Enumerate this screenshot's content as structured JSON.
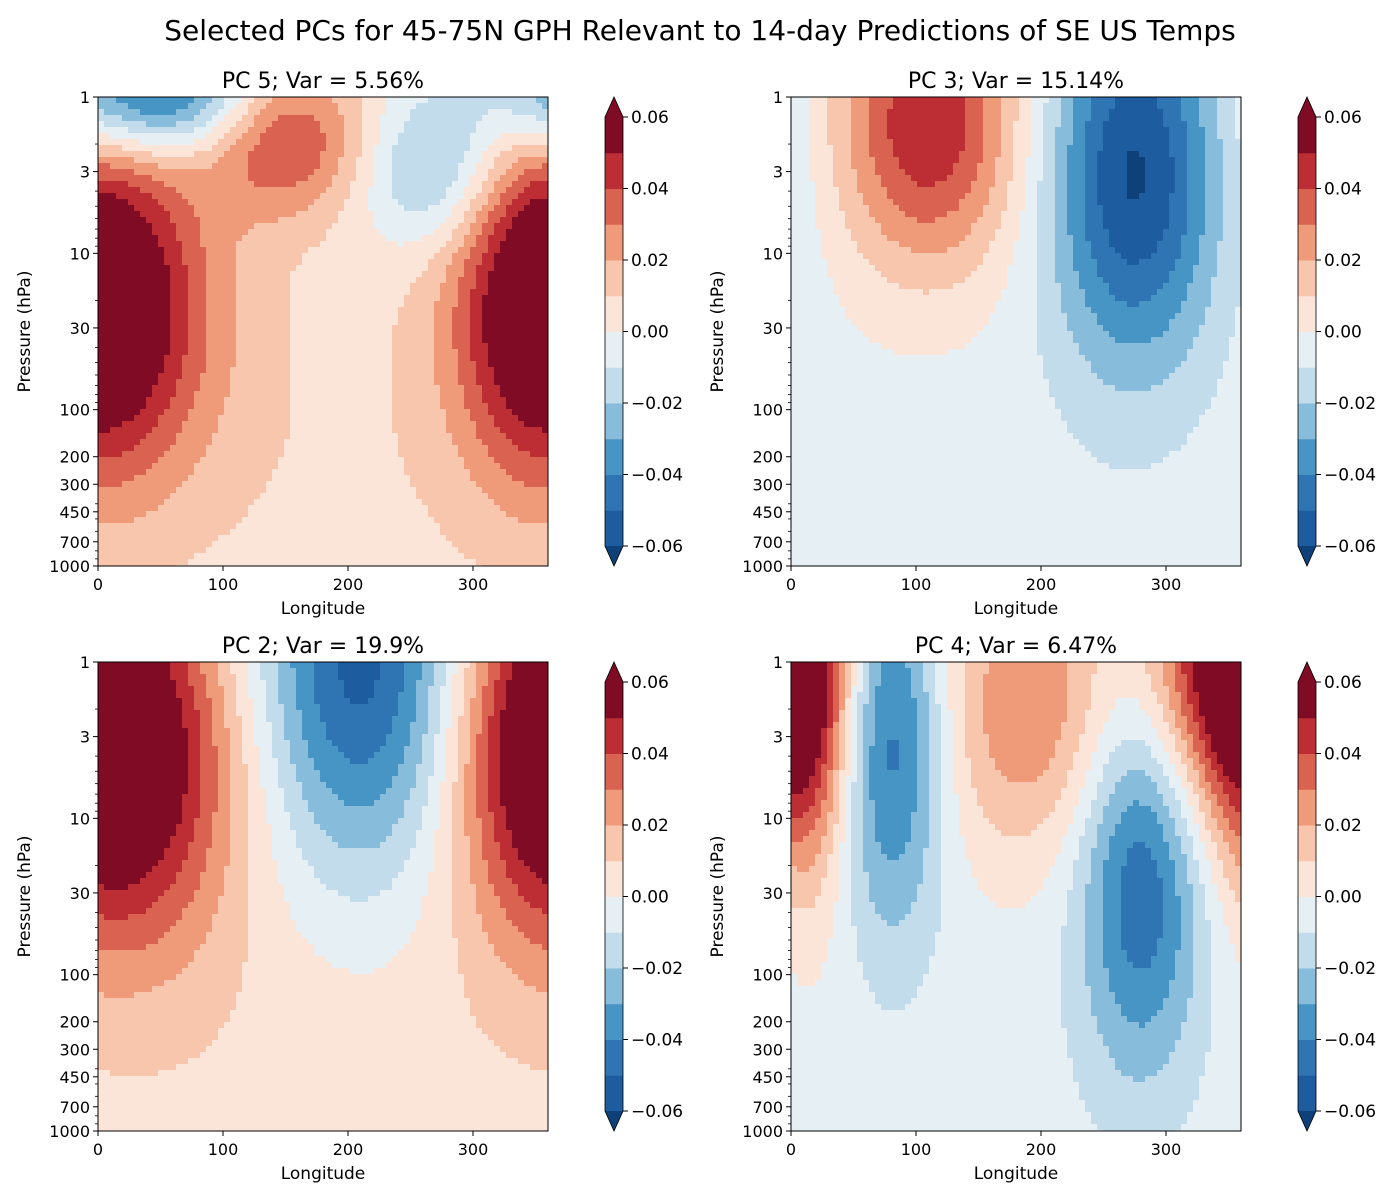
{
  "figure": {
    "title": "Selected PCs for 45-75N GPH Relevant to 14-day Predictions of SE US Temps"
  },
  "colorbar": {
    "levels": [
      -0.06,
      -0.05,
      -0.04,
      -0.03,
      -0.02,
      -0.01,
      0.0,
      0.01,
      0.02,
      0.03,
      0.04,
      0.05,
      0.06
    ],
    "tick_labels": [
      "−0.06",
      "−0.04",
      "−0.02",
      "0.00",
      "0.02",
      "0.04",
      "0.06"
    ],
    "colors": [
      "#0e4179",
      "#1c5c9f",
      "#2f75b4",
      "#4795c5",
      "#87bcda",
      "#c2dcec",
      "#e6eff4",
      "#fbe5d9",
      "#f8c5ad",
      "#ef9b7a",
      "#d96250",
      "#bc2e34",
      "#7f0b24"
    ],
    "colormap": "RdBu_r",
    "extend": "both"
  },
  "chart_data": [
    {
      "type": "contourf",
      "title": "PC 5; Var = 5.56%",
      "xlabel": "Longitude",
      "ylabel": "Pressure (hPa)",
      "xlim": [
        0,
        360
      ],
      "ylim": [
        1000,
        1
      ],
      "yscale": "log",
      "xticks": [
        "0",
        "100",
        "200",
        "300"
      ],
      "yticks": [
        "1",
        "3",
        "10",
        "30",
        "100",
        "200",
        "300",
        "450",
        "700",
        "1000"
      ],
      "features": [
        {
          "lon": 42,
          "p": 1,
          "value": -0.055,
          "sx": 60,
          "sp": 0.6
        },
        {
          "lon": 150,
          "p": 1.8,
          "value": 0.04,
          "sx": 45,
          "sp": 0.8
        },
        {
          "lon": 270,
          "p": 3,
          "value": -0.03,
          "sx": 40,
          "sp": 0.8
        },
        {
          "lon": 20,
          "p": 22,
          "value": 0.04,
          "sx": 60,
          "sp": 1.8
        },
        {
          "lon": 350,
          "p": 20,
          "value": 0.04,
          "sx": 45,
          "sp": 1.8
        },
        {
          "lon": 180,
          "p": 200,
          "value": 0.008,
          "sx": 200,
          "sp": 3.0
        }
      ]
    },
    {
      "type": "contourf",
      "title": "PC 3; Var = 15.14%",
      "xlabel": "Longitude",
      "ylabel": "Pressure (hPa)",
      "xlim": [
        0,
        360
      ],
      "ylim": [
        1000,
        1
      ],
      "yscale": "log",
      "xticks": [
        "0",
        "100",
        "200",
        "300"
      ],
      "yticks": [
        "1",
        "3",
        "10",
        "30",
        "100",
        "200",
        "300",
        "450",
        "700",
        "1000"
      ],
      "features": [
        {
          "lon": 110,
          "p": 1.5,
          "value": 0.05,
          "sx": 50,
          "sp": 1.5
        },
        {
          "lon": 275,
          "p": 3,
          "value": -0.06,
          "sx": 48,
          "sp": 2.0
        },
        {
          "lon": 180,
          "p": 400,
          "value": -0.005,
          "sx": 250,
          "sp": 3.0
        }
      ]
    },
    {
      "type": "contourf",
      "title": "PC 2; Var = 19.9%",
      "xlabel": "Longitude",
      "ylabel": "Pressure (hPa)",
      "xlim": [
        0,
        360
      ],
      "ylim": [
        1000,
        1
      ],
      "yscale": "log",
      "xticks": [
        "0",
        "100",
        "200",
        "300"
      ],
      "yticks": [
        "1",
        "3",
        "10",
        "30",
        "100",
        "200",
        "300",
        "450",
        "700",
        "1000"
      ],
      "features": [
        {
          "lon": 40,
          "p": 4,
          "value": 0.045,
          "sx": 60,
          "sp": 2.0
        },
        {
          "lon": 210,
          "p": 1,
          "value": -0.055,
          "sx": 60,
          "sp": 2.2
        },
        {
          "lon": 350,
          "p": 3,
          "value": 0.045,
          "sx": 50,
          "sp": 2.0
        },
        {
          "lon": 180,
          "p": 500,
          "value": 0.007,
          "sx": 250,
          "sp": 3.0
        }
      ]
    },
    {
      "type": "contourf",
      "title": "PC 4; Var = 6.47%",
      "xlabel": "Longitude",
      "ylabel": "Pressure (hPa)",
      "xlim": [
        0,
        360
      ],
      "ylim": [
        1000,
        1
      ],
      "yscale": "log",
      "xticks": [
        "0",
        "100",
        "200",
        "300"
      ],
      "yticks": [
        "1",
        "3",
        "10",
        "30",
        "100",
        "200",
        "300",
        "450",
        "700",
        "1000"
      ],
      "features": [
        {
          "lon": 10,
          "p": 2,
          "value": 0.04,
          "sx": 25,
          "sp": 2.0
        },
        {
          "lon": 80,
          "p": 3,
          "value": -0.045,
          "sx": 30,
          "sp": 2.0
        },
        {
          "lon": 190,
          "p": 2,
          "value": 0.03,
          "sx": 50,
          "sp": 1.5
        },
        {
          "lon": 280,
          "p": 25,
          "value": -0.045,
          "sx": 35,
          "sp": 2.0
        },
        {
          "lon": 345,
          "p": 1,
          "value": 0.06,
          "sx": 40,
          "sp": 1.5
        },
        {
          "lon": 200,
          "p": 500,
          "value": -0.005,
          "sx": 250,
          "sp": 3.0
        }
      ]
    }
  ]
}
